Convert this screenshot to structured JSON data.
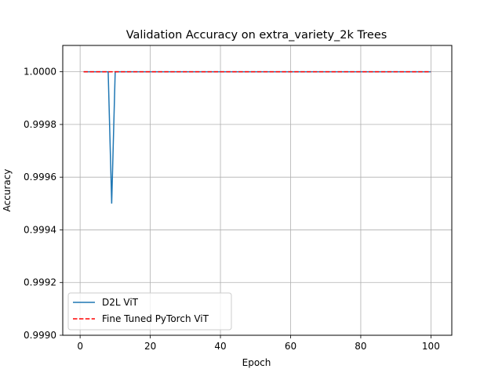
{
  "chart_data": {
    "type": "line",
    "title": "Validation Accuracy on extra_variety_2k Trees",
    "xlabel": "Epoch",
    "ylabel": "Accuracy",
    "xlim": [
      -4.95,
      105.95
    ],
    "ylim": [
      0.999,
      1.0001
    ],
    "xticks": [
      0,
      20,
      40,
      60,
      80,
      100
    ],
    "xtick_labels": [
      "0",
      "20",
      "40",
      "60",
      "80",
      "100"
    ],
    "yticks": [
      0.999,
      0.9992,
      0.9994,
      0.9996,
      0.9998,
      1.0
    ],
    "ytick_labels": [
      "0.9990",
      "0.9992",
      "0.9994",
      "0.9996",
      "0.9998",
      "1.0000"
    ],
    "grid": true,
    "legend_position": "lower-left",
    "series": [
      {
        "name": "D2L ViT",
        "color": "#1f77b4",
        "style": "solid",
        "x": [
          1,
          8,
          9,
          10,
          100
        ],
        "y": [
          1.0,
          1.0,
          0.9995,
          1.0,
          1.0
        ]
      },
      {
        "name": "Fine Tuned PyTorch ViT",
        "color": "#ff0000",
        "style": "dashed",
        "x": [
          1,
          100
        ],
        "y": [
          1.0,
          1.0
        ]
      }
    ]
  }
}
